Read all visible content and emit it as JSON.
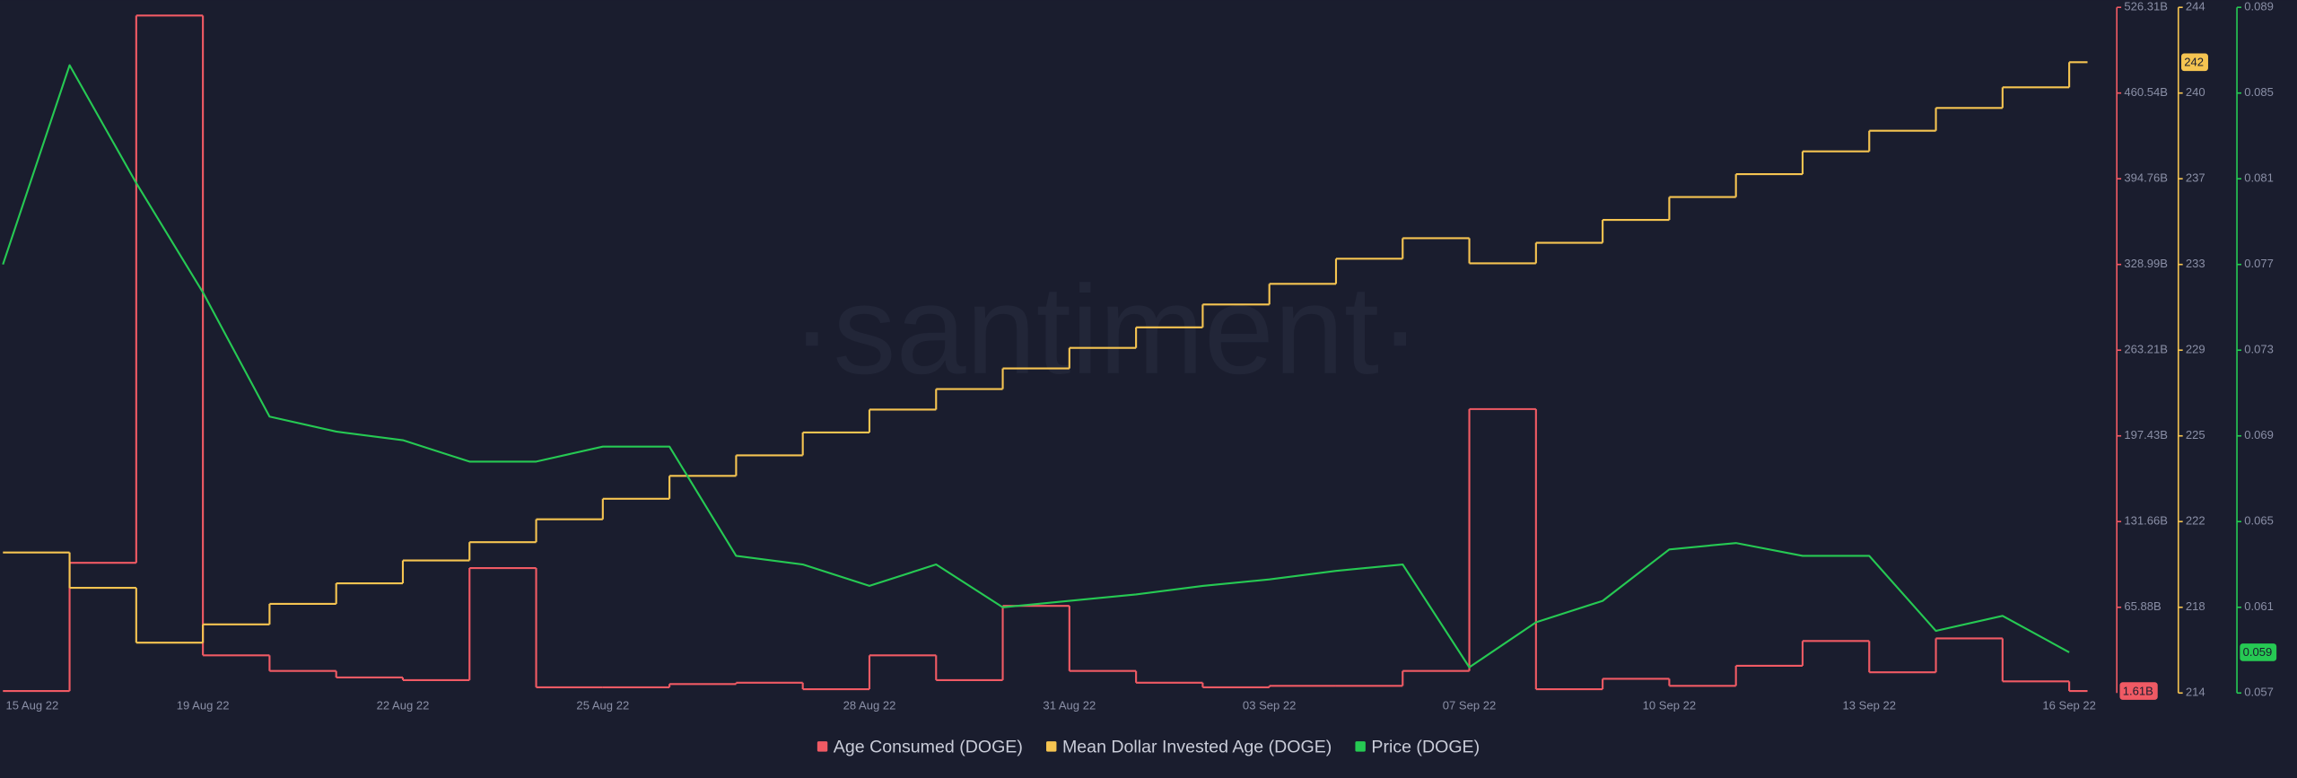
{
  "chart_data": {
    "type": "line",
    "watermark": "·santiment·",
    "x": [
      "15 Aug 22",
      null,
      null,
      "19 Aug 22",
      null,
      null,
      "22 Aug 22",
      null,
      null,
      "25 Aug 22",
      null,
      null,
      null,
      "28 Aug 22",
      null,
      null,
      "31 Aug 22",
      null,
      null,
      "03 Sep 22",
      null,
      null,
      "07 Sep 22",
      null,
      null,
      "10 Sep 22",
      null,
      null,
      "13 Sep 22",
      null,
      null,
      "16 Sep 22"
    ],
    "series": [
      {
        "name": "Age Consumed (DOGE)",
        "color": "#f05a64",
        "axis": "y",
        "step": true,
        "values": [
          1.61,
          100,
          520,
          29,
          17,
          12,
          10,
          96,
          4.5,
          4.5,
          7,
          8,
          3,
          29,
          10,
          67,
          17,
          8,
          4.5,
          5.6,
          5.6,
          17,
          218,
          3,
          11,
          5.6,
          21,
          40,
          16,
          42,
          9,
          1.61
        ],
        "value_labels": [
          null,
          null,
          null,
          null,
          null,
          null,
          null,
          null,
          null,
          null,
          null,
          null,
          null,
          null,
          null,
          null,
          null,
          null,
          null,
          null,
          null,
          null,
          null,
          null,
          null,
          null,
          null,
          null,
          null,
          null,
          null,
          "1.61B"
        ]
      },
      {
        "name": "Mean Dollar Invested Age (DOGE)",
        "color": "#f5c451",
        "axis": "y2",
        "step": true,
        "values": [
          220.15,
          218.6,
          216.2,
          217.0,
          217.9,
          218.8,
          219.8,
          220.6,
          221.6,
          222.5,
          223.5,
          224.4,
          225.4,
          226.4,
          227.3,
          228.2,
          229.1,
          230.0,
          231.0,
          231.9,
          233.0,
          233.9,
          232.8,
          233.7,
          234.7,
          235.7,
          236.7,
          237.7,
          238.6,
          239.6,
          240.5,
          241.6
        ],
        "value_labels": [
          null,
          null,
          null,
          null,
          null,
          null,
          null,
          null,
          null,
          null,
          null,
          null,
          null,
          null,
          null,
          null,
          null,
          null,
          null,
          null,
          null,
          null,
          null,
          null,
          null,
          null,
          null,
          null,
          null,
          null,
          null,
          "242"
        ]
      },
      {
        "name": "Price (DOGE)",
        "color": "#26c953",
        "axis": "y3",
        "step": false,
        "values": [
          0.077,
          0.0863,
          0.0808,
          0.0757,
          0.0699,
          0.0692,
          0.0688,
          0.0678,
          0.0678,
          0.0685,
          0.0685,
          0.0634,
          0.063,
          0.062,
          0.063,
          0.061,
          0.0613,
          0.0616,
          0.062,
          0.0623,
          0.0627,
          0.063,
          0.0582,
          0.0603,
          0.0613,
          0.0637,
          0.064,
          0.0634,
          0.0634,
          0.0599,
          0.0606,
          0.0589
        ],
        "value_labels": [
          null,
          null,
          null,
          null,
          null,
          null,
          null,
          null,
          null,
          null,
          null,
          null,
          null,
          null,
          null,
          null,
          null,
          null,
          null,
          null,
          null,
          null,
          null,
          null,
          null,
          null,
          null,
          null,
          null,
          null,
          null,
          "0.059"
        ]
      }
    ],
    "ylim": [
      0.1,
      526.31
    ],
    "yticks": [
      {
        "value": 65.88,
        "label": "65.88B"
      },
      {
        "value": 131.66,
        "label": "131.66B"
      },
      {
        "value": 197.43,
        "label": "197.43B"
      },
      {
        "value": 263.21,
        "label": "263.21B"
      },
      {
        "value": 328.99,
        "label": "328.99B"
      },
      {
        "value": 394.76,
        "label": "394.76B"
      },
      {
        "value": 460.54,
        "label": "460.54B"
      },
      {
        "value": 526.31,
        "label": "526.31B"
      }
    ],
    "y2lim": [
      214,
      244
    ],
    "y2ticks": [
      214,
      {
        "value": 217.75,
        "label": "218"
      },
      {
        "value": 221.5,
        "label": "222"
      },
      {
        "value": 225.25,
        "label": "225"
      },
      229,
      {
        "value": 232.75,
        "label": "233"
      },
      {
        "value": 236.5,
        "label": "237"
      },
      {
        "value": 240.25,
        "label": "240"
      },
      244
    ],
    "y3lim": [
      0.057,
      0.089
    ],
    "y3ticks": [
      0.057,
      0.061,
      0.065,
      0.069,
      0.073,
      0.077,
      0.081,
      0.085,
      0.089
    ],
    "legend": "bottom"
  }
}
